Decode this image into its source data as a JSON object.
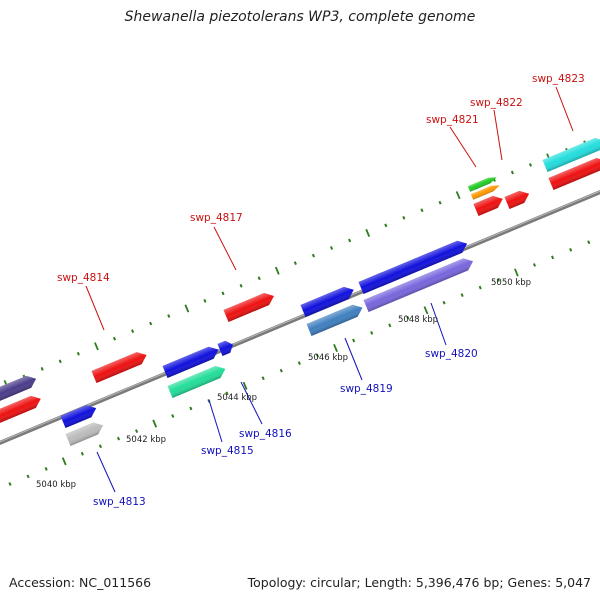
{
  "title": "Shewanella piezotolerans WP3, complete genome",
  "footer": {
    "accession": "Accession: NC_011566",
    "summary": "Topology: circular; Length: 5,396,476 bp; Genes: 5,047"
  },
  "colors": {
    "backbone": "#8a8a8a",
    "tick": "#2e7d1e",
    "label_forward": "#cc1111",
    "label_reverse": "#1111bb"
  },
  "scale_labels": [
    "5040 kbp",
    "5042 kbp",
    "5044 kbp",
    "5046 kbp",
    "5048 kbp",
    "5050 kbp"
  ],
  "genes": [
    {
      "name": "",
      "strand": "+",
      "color": "#ee1111"
    },
    {
      "name": "",
      "strand": "+",
      "color": "#4b3c8a"
    },
    {
      "name": "swp_4814",
      "strand": "+",
      "color": "#ee1111"
    },
    {
      "name": "swp_4817",
      "strand": "+",
      "color": "#ee1111"
    },
    {
      "name": "swp_4821",
      "strand": "+",
      "color": "#ee1111"
    },
    {
      "name": "swp_4822",
      "strand": "+",
      "color": "#ee1111"
    },
    {
      "name": "swp_4823",
      "strand": "+",
      "color": "#ee1111"
    },
    {
      "name": "",
      "strand": "+",
      "color": "#22cc22"
    },
    {
      "name": "",
      "strand": "+",
      "color": "#ff9900"
    },
    {
      "name": "swp_4823",
      "strand": "+",
      "color": "#22dddd"
    },
    {
      "name": "swp_4813",
      "strand": "-",
      "color": "#1111dd"
    },
    {
      "name": "swp_4813",
      "strand": "-",
      "color": "#bbbbbb"
    },
    {
      "name": "swp_4815",
      "strand": "-",
      "color": "#1111dd"
    },
    {
      "name": "",
      "strand": "-",
      "color": "#1111dd"
    },
    {
      "name": "swp_4815",
      "strand": "-",
      "color": "#22dd99"
    },
    {
      "name": "swp_4819",
      "strand": "-",
      "color": "#1111dd"
    },
    {
      "name": "swp_4819",
      "strand": "-",
      "color": "#3f7fbf"
    },
    {
      "name": "swp_4820",
      "strand": "-",
      "color": "#1111dd"
    },
    {
      "name": "swp_4820",
      "strand": "-",
      "color": "#7766dd"
    }
  ],
  "labels_forward": [
    "swp_4814",
    "swp_4817",
    "swp_4821",
    "swp_4822",
    "swp_4823"
  ],
  "labels_reverse": [
    "swp_4813",
    "swp_4815",
    "swp_4816",
    "swp_4819",
    "swp_4820"
  ]
}
